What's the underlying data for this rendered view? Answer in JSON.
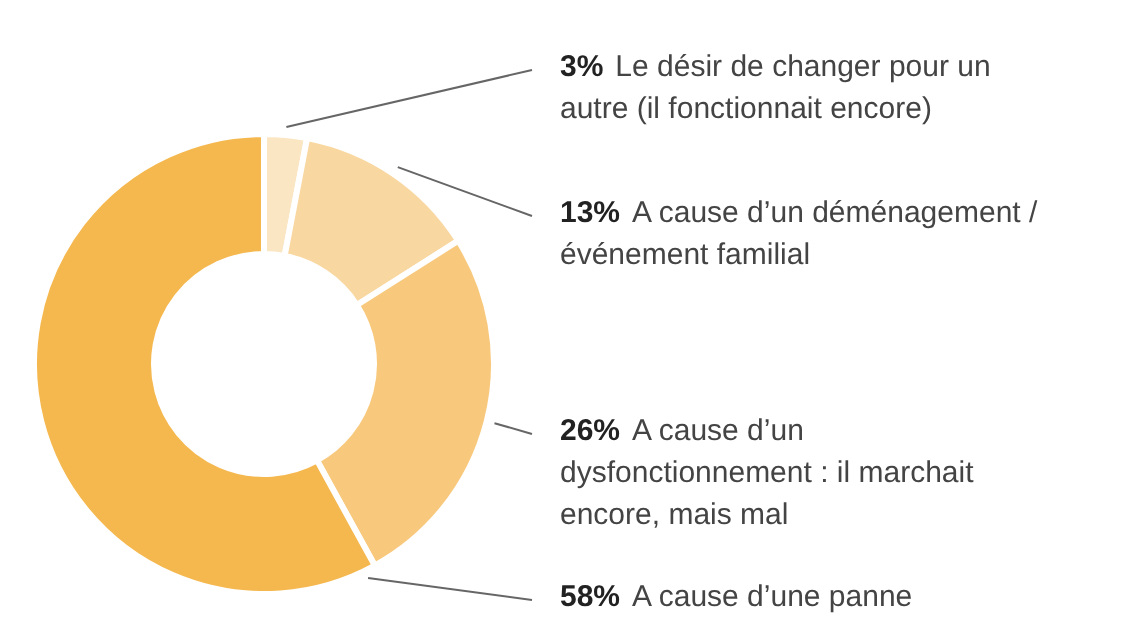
{
  "chart_data": {
    "type": "donut",
    "categories": [
      "Le désir de changer pour un autre (il fonctionnait encore)",
      "A cause d’un déménagement / événement familial",
      "A cause d’un dysfonctionnement : il marchait encore, mais mal",
      "A cause d’une panne"
    ],
    "values": [
      3,
      13,
      26,
      58
    ],
    "value_labels": [
      "3%",
      "13%",
      "26%",
      "58%"
    ],
    "colors": [
      "#fbe6c4",
      "#f9d7a0",
      "#f8c97d",
      "#f5b84f"
    ]
  }
}
